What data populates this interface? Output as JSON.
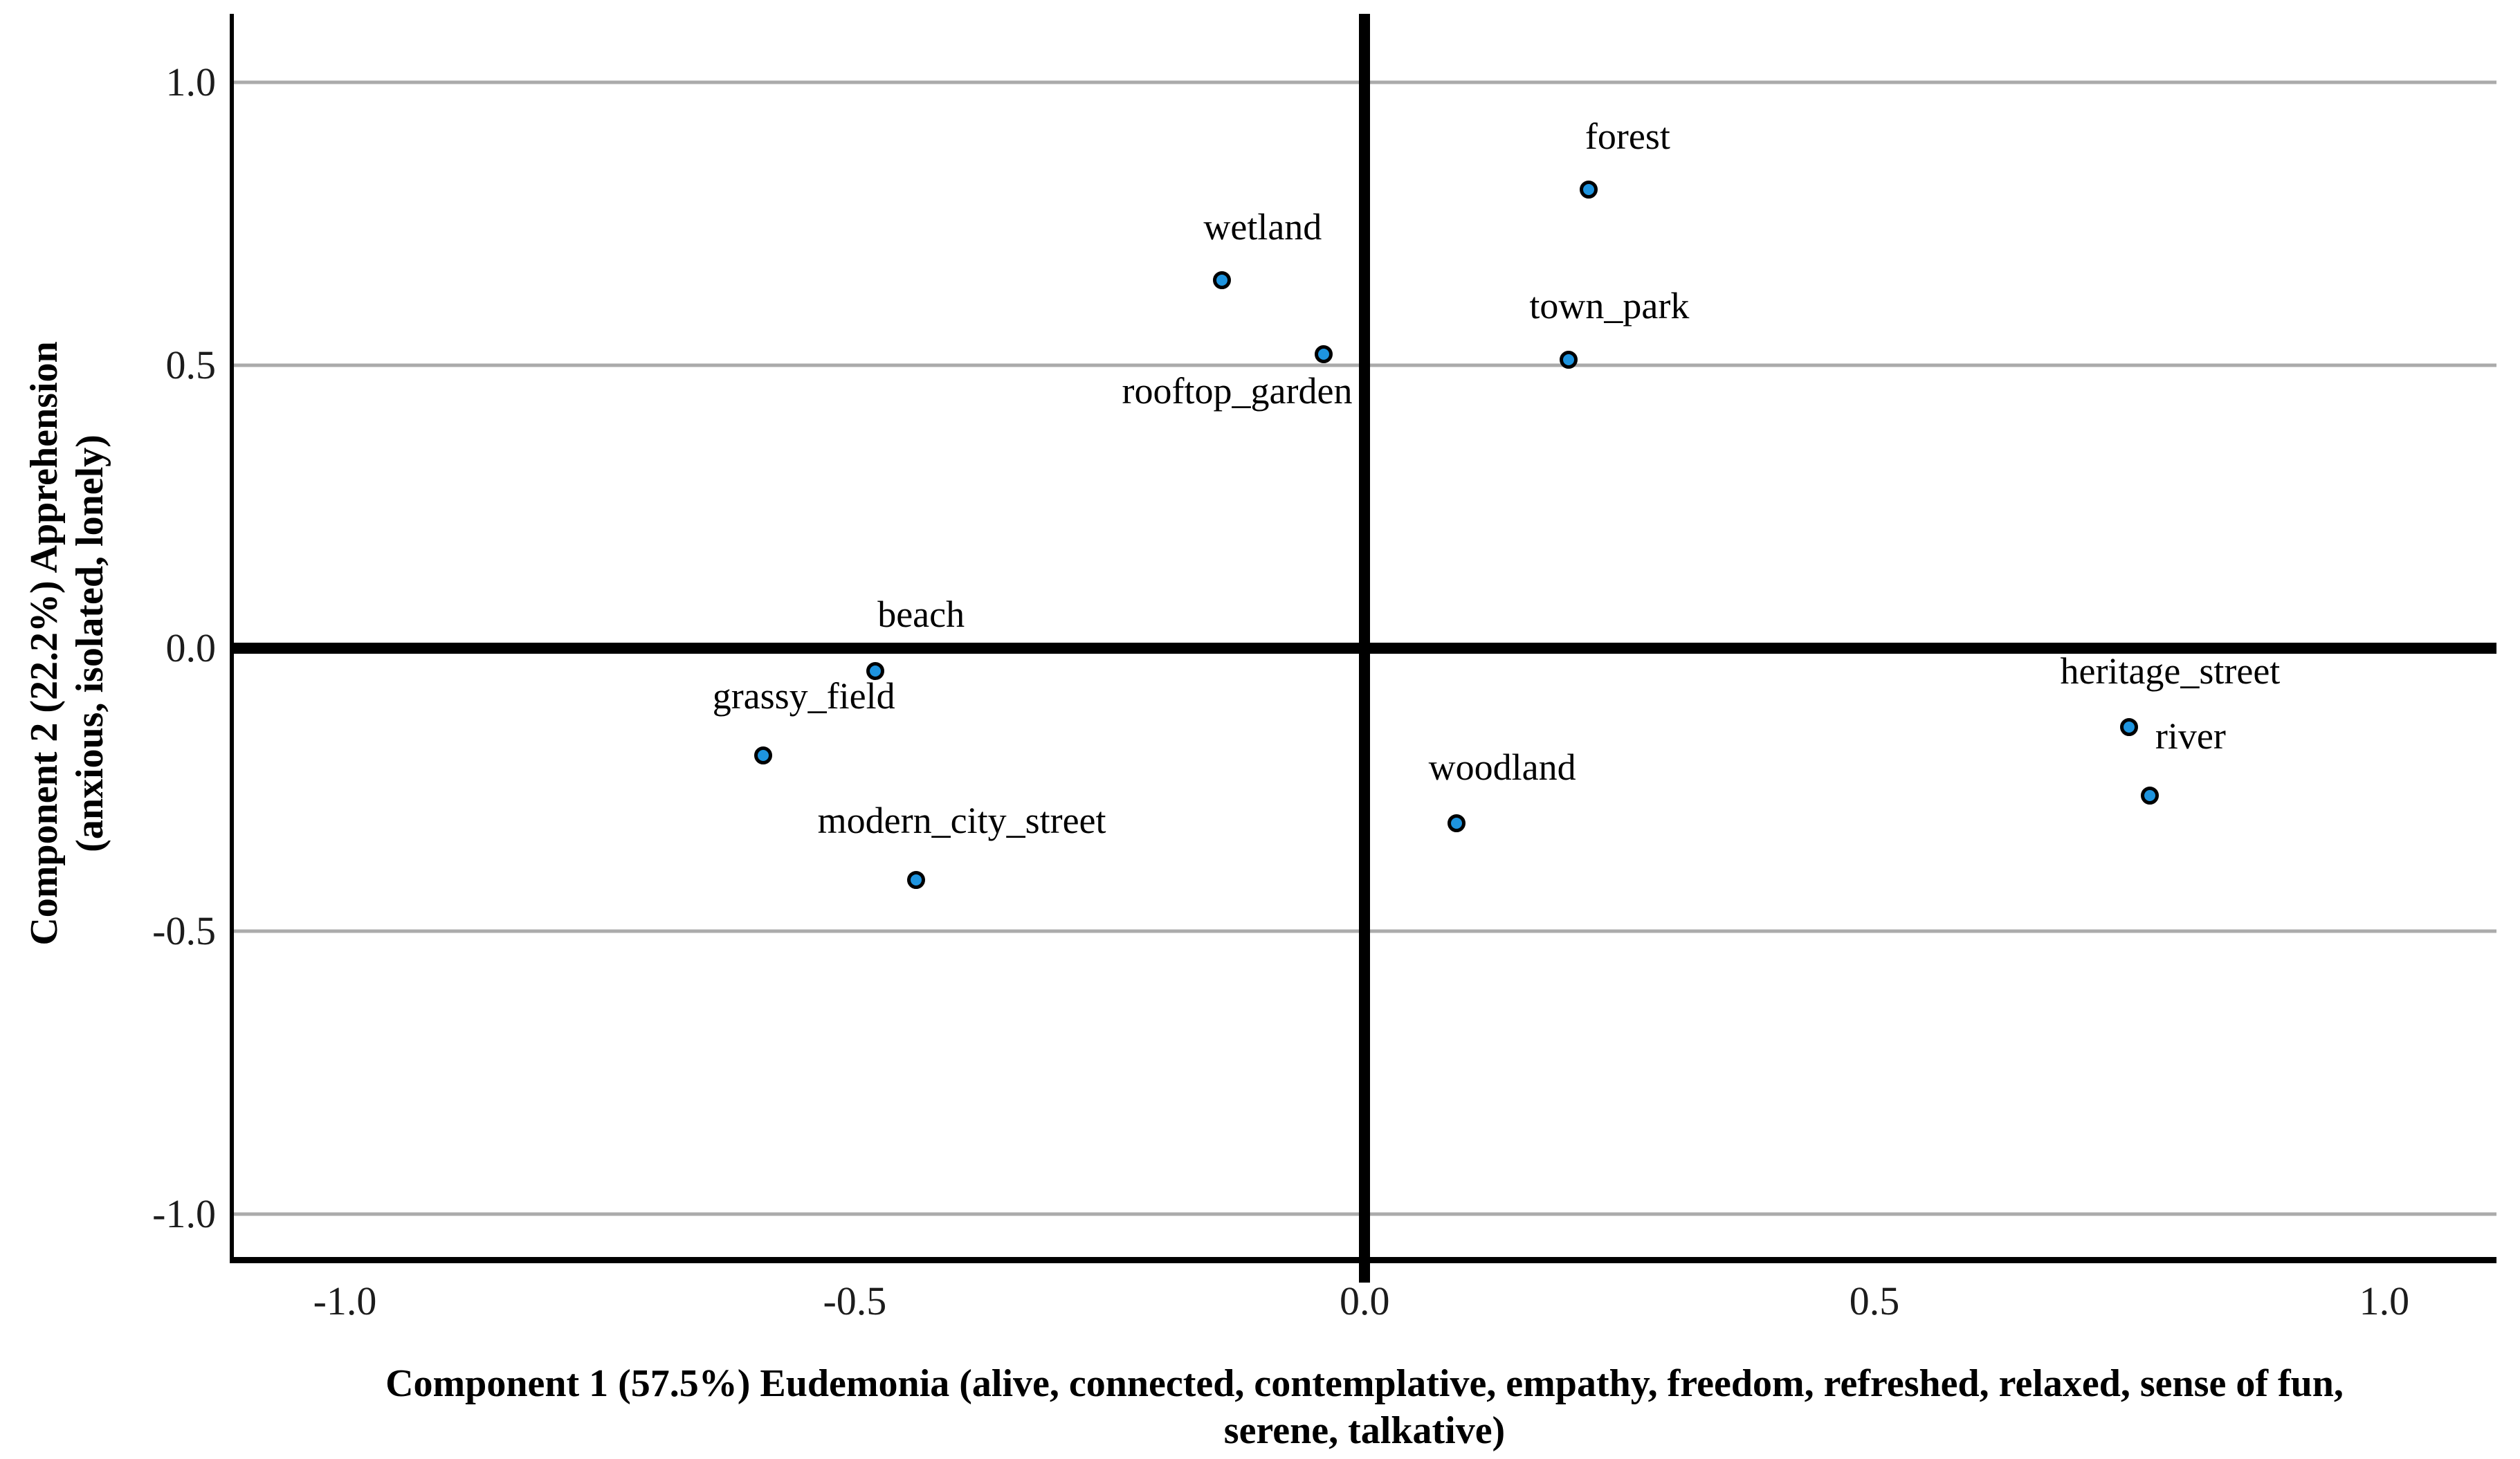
{
  "chart_data": {
    "type": "scatter",
    "title": "",
    "xlabel_lines": [
      "Component 1 (57.5%) Eudemonia (alive, connected, contemplative, empathy, freedom, refreshed, relaxed, sense of fun,",
      "serene, talkative)"
    ],
    "ylabel_lines": [
      "Component 2 (22.2%) Apprehension",
      "(anxious, isolated, lonely)"
    ],
    "xlim": [
      -1.113,
      1.11
    ],
    "ylim": [
      -1.087,
      1.121
    ],
    "xticks": {
      "values": [
        -1.0,
        -0.5,
        0.0,
        0.5,
        1.0
      ],
      "labels": [
        "-1.0",
        "-0.5",
        "0.0",
        "0.5",
        "1.0"
      ]
    },
    "yticks": {
      "values": [
        1.0,
        0.5,
        0.0,
        -0.5,
        -1.0
      ],
      "labels": [
        "1.0",
        "0.5",
        "0.0",
        "-0.5",
        "-1.0"
      ]
    },
    "grid": "horizontal-only",
    "legend": "none",
    "reference_lines": {
      "x": 0.0,
      "y": 0.0
    },
    "marker": {
      "fill": "#1E94DF",
      "stroke": "#000000"
    },
    "colors": {
      "gridline": "#ababab",
      "axis": "#000000",
      "text": "#000000"
    },
    "points": [
      {
        "label": "forest",
        "x": 0.22,
        "y": 0.81,
        "label_x": 0.258,
        "label_y": 0.905
      },
      {
        "label": "wetland",
        "x": -0.14,
        "y": 0.65,
        "label_x": -0.1,
        "label_y": 0.745
      },
      {
        "label": "rooftop_garden",
        "x": -0.04,
        "y": 0.52,
        "label_x": -0.125,
        "label_y": 0.455
      },
      {
        "label": "town_park",
        "x": 0.2,
        "y": 0.51,
        "label_x": 0.24,
        "label_y": 0.605
      },
      {
        "label": "beach",
        "x": -0.48,
        "y": -0.04,
        "label_x": -0.435,
        "label_y": 0.06
      },
      {
        "label": "grassy_field",
        "x": -0.59,
        "y": -0.19,
        "label_x": -0.55,
        "label_y": -0.085
      },
      {
        "label": "modern_city_street",
        "x": -0.44,
        "y": -0.41,
        "label_x": -0.395,
        "label_y": -0.305
      },
      {
        "label": "woodland",
        "x": 0.09,
        "y": -0.31,
        "label_x": 0.135,
        "label_y": -0.21
      },
      {
        "label": "heritage_street",
        "x": 0.75,
        "y": -0.14,
        "label_x": 0.79,
        "label_y": -0.04
      },
      {
        "label": "river",
        "x": 0.77,
        "y": -0.26,
        "label_x": 0.81,
        "label_y": -0.155
      }
    ]
  }
}
